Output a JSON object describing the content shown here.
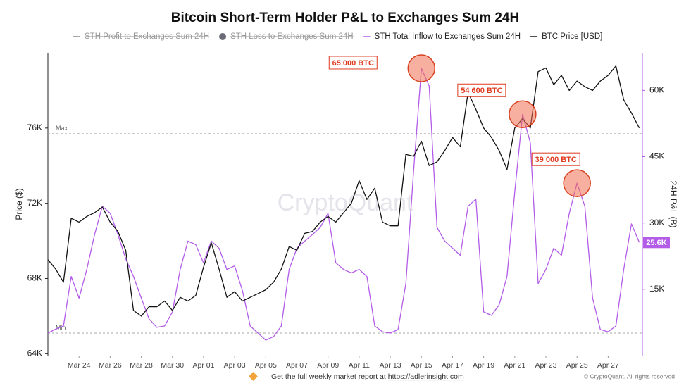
{
  "chart_data": {
    "type": "line",
    "title": "Bitcoin Short-Term Holder P&L to Exchanges Sum 24H",
    "y_label": "Price ($)",
    "y2_label": "24H P&L (B)",
    "watermark": "CryptoQuant",
    "x": [
      0,
      0.5,
      1,
      1.5,
      2,
      2.5,
      3,
      3.5,
      4,
      4.5,
      5,
      5.5,
      6,
      6.5,
      7,
      7.5,
      8,
      8.5,
      9,
      9.5,
      10,
      10.5,
      11,
      11.5,
      12,
      12.5,
      13,
      13.5,
      14,
      14.5,
      15,
      15.5,
      16,
      16.5,
      17,
      17.5,
      18,
      18.5,
      19,
      19.5,
      20,
      20.5,
      21,
      21.5,
      22,
      22.5,
      23,
      23.5,
      24,
      24.5,
      25,
      25.5,
      26,
      26.5,
      27,
      27.5,
      28,
      28.5,
      29,
      29.5,
      30,
      30.5,
      31,
      31.5,
      32,
      32.5,
      33,
      33.5,
      34,
      34.5,
      35,
      35.5,
      36,
      36.5,
      37,
      37.5,
      38
    ],
    "xlim": [
      0,
      38.2
    ],
    "xticks": [
      {
        "value": 2,
        "label": "Mar 24"
      },
      {
        "value": 4,
        "label": "Mar 26"
      },
      {
        "value": 6,
        "label": "Mar 28"
      },
      {
        "value": 8,
        "label": "Mar 30"
      },
      {
        "value": 10,
        "label": "Apr 01"
      },
      {
        "value": 12,
        "label": "Apr 03"
      },
      {
        "value": 14,
        "label": "Apr 05"
      },
      {
        "value": 16,
        "label": "Apr 07"
      },
      {
        "value": 18,
        "label": "Apr 09"
      },
      {
        "value": 20,
        "label": "Apr 11"
      },
      {
        "value": 22,
        "label": "Apr 13"
      },
      {
        "value": 24,
        "label": "Apr 15"
      },
      {
        "value": 26,
        "label": "Apr 17"
      },
      {
        "value": 28,
        "label": "Apr 19"
      },
      {
        "value": 30,
        "label": "Apr 21"
      },
      {
        "value": 32,
        "label": "Apr 23"
      },
      {
        "value": 34,
        "label": "Apr 25"
      },
      {
        "value": 36,
        "label": "Apr 27"
      }
    ],
    "ylim": [
      63900,
      80000
    ],
    "yticks": [
      {
        "value": 64000,
        "label": "64K"
      },
      {
        "value": 68000,
        "label": "68K"
      },
      {
        "value": 72000,
        "label": "72K"
      },
      {
        "value": 76000,
        "label": "76K"
      }
    ],
    "y2lim": [
      0,
      68500
    ],
    "y2ticks": [
      {
        "value": 15000,
        "label": "15K"
      },
      {
        "value": 30000,
        "label": "30K"
      },
      {
        "value": 45000,
        "label": "45K"
      },
      {
        "value": 60000,
        "label": "60K"
      }
    ],
    "grid": false,
    "reference_lines": [
      {
        "label": "Max",
        "value": 75700
      },
      {
        "label": "Min",
        "value": 65100
      }
    ],
    "series": [
      {
        "name": "STH Profit to Exchanges Sum 24H",
        "color": "#888888",
        "visible": false
      },
      {
        "name": "STH Loss to Exchanges Sum 24H",
        "color": "#6b6b78",
        "visible": false
      },
      {
        "name": "STH Total Inflow to Exchanges Sum 24H",
        "color": "#b35ce8",
        "axis": "y2",
        "last_label": "25.6K",
        "values": [
          5100,
          6000,
          6700,
          17900,
          13000,
          19500,
          27400,
          33800,
          32200,
          27400,
          21900,
          17900,
          13000,
          8300,
          6400,
          6700,
          9900,
          19500,
          25900,
          25100,
          21000,
          25900,
          24300,
          19500,
          20300,
          14700,
          6700,
          5100,
          3500,
          4300,
          6700,
          19500,
          24300,
          25900,
          27400,
          29000,
          32200,
          21000,
          19500,
          18700,
          19500,
          17900,
          6700,
          5400,
          5100,
          5900,
          16300,
          41800,
          65000,
          61000,
          29000,
          25900,
          24300,
          22700,
          33800,
          35400,
          9900,
          9100,
          11500,
          17900,
          37000,
          54600,
          48200,
          16300,
          19500,
          24300,
          22700,
          32200,
          39000,
          33800,
          13000,
          5900,
          5400,
          6700,
          19500,
          29800,
          25600
        ]
      },
      {
        "name": "BTC Price [USD]",
        "color": "#111111",
        "values": [
          69000,
          68500,
          67800,
          71200,
          71000,
          71300,
          71500,
          71800,
          71000,
          70500,
          69500,
          66300,
          66000,
          66500,
          66500,
          66800,
          66300,
          67000,
          66800,
          67100,
          68600,
          69900,
          68500,
          67000,
          67300,
          66800,
          67000,
          67200,
          67400,
          67800,
          68500,
          69700,
          69500,
          70400,
          70500,
          71000,
          71300,
          71000,
          71500,
          72000,
          73200,
          72200,
          72800,
          71000,
          70800,
          70800,
          74600,
          74500,
          75300,
          74000,
          74200,
          74800,
          75500,
          75000,
          77900,
          77000,
          76000,
          75500,
          74800,
          73800,
          76000,
          76500,
          76000,
          79000,
          79200,
          78300,
          78800,
          78000,
          78500,
          78200,
          78000,
          78500,
          78800,
          79300,
          77500,
          76800,
          76000
        ]
      }
    ],
    "annotations": [
      {
        "text": "65 000 BTC",
        "x": 24,
        "y": 65000
      },
      {
        "text": "54 600 BTC",
        "x": 30.5,
        "y": 54600
      },
      {
        "text": "39 000 BTC",
        "x": 34,
        "y": 39000
      }
    ],
    "footer": {
      "text": "Get the full weekly market report at ",
      "link": "https://adlerinsight.com",
      "copyright": "© CryptoQuant. All rights reserved"
    }
  }
}
